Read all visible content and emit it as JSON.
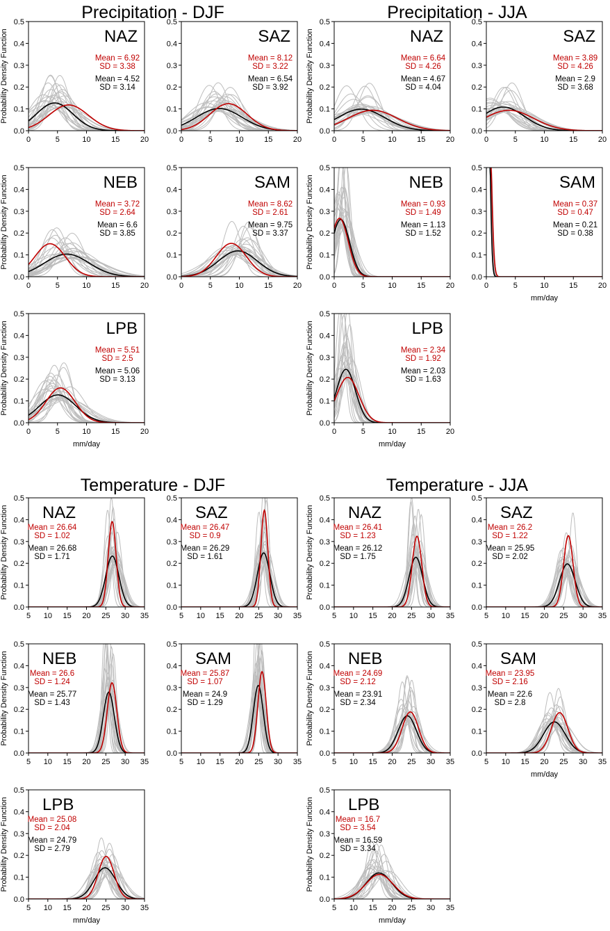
{
  "colors": {
    "obs": "#c00000",
    "ens_mean": "#000000",
    "members": "#bdbdbd"
  },
  "chart_data": {
    "type": "line",
    "ylabel": "Probability Density Function",
    "xlabel": "mm/day",
    "sections": [
      {
        "title": "Precipitation -  DJF",
        "variable": "precipitation",
        "season": "DJF",
        "xlim": [
          0,
          20
        ],
        "xticks": [
          0,
          5,
          10,
          15,
          20
        ],
        "ylim": [
          0,
          0.5
        ],
        "yticks": [
          0.0,
          0.1,
          0.2,
          0.3,
          0.4,
          0.5
        ],
        "panels": [
          {
            "region": "NAZ",
            "obs": {
              "mean_label": "Mean = 6.92",
              "sd_label": "SD = 3.38",
              "mean": 6.92,
              "sd": 3.38
            },
            "models": {
              "mean_label": "Mean = 4.52",
              "sd_label": "SD = 3.14",
              "mean": 4.52,
              "sd": 3.14
            }
          },
          {
            "region": "SAZ",
            "obs": {
              "mean_label": "Mean = 8.12",
              "sd_label": "SD = 3.22",
              "mean": 8.12,
              "sd": 3.22
            },
            "models": {
              "mean_label": "Mean = 6.54",
              "sd_label": "SD = 3.92",
              "mean": 6.54,
              "sd": 3.92
            }
          },
          {
            "region": "NEB",
            "obs": {
              "mean_label": "Mean = 3.72",
              "sd_label": "SD = 2.64",
              "mean": 3.72,
              "sd": 2.64
            },
            "models": {
              "mean_label": "Mean = 6.6",
              "sd_label": "SD = 3.85",
              "mean": 6.6,
              "sd": 3.85
            }
          },
          {
            "region": "SAM",
            "obs": {
              "mean_label": "Mean = 8.62",
              "sd_label": "SD = 2.61",
              "mean": 8.62,
              "sd": 2.61
            },
            "models": {
              "mean_label": "Mean = 9.75",
              "sd_label": "SD = 3.37",
              "mean": 9.75,
              "sd": 3.37
            }
          },
          {
            "region": "LPB",
            "obs": {
              "mean_label": "Mean = 5.51",
              "sd_label": "SD = 2.5",
              "mean": 5.51,
              "sd": 2.5
            },
            "models": {
              "mean_label": "Mean = 5.06",
              "sd_label": "SD = 3.13",
              "mean": 5.06,
              "sd": 3.13
            }
          }
        ]
      },
      {
        "title": "Precipitation -  JJA",
        "variable": "precipitation",
        "season": "JJA",
        "xlim": [
          0,
          20
        ],
        "xticks": [
          0,
          5,
          10,
          15,
          20
        ],
        "ylim": [
          0,
          0.5
        ],
        "yticks": [
          0.0,
          0.1,
          0.2,
          0.3,
          0.4,
          0.5
        ],
        "panels": [
          {
            "region": "NAZ",
            "obs": {
              "mean_label": "Mean = 6.64",
              "sd_label": "SD = 4.26",
              "mean": 6.64,
              "sd": 4.26
            },
            "models": {
              "mean_label": "Mean = 4.67",
              "sd_label": "SD = 4.04",
              "mean": 4.67,
              "sd": 4.04
            }
          },
          {
            "region": "SAZ",
            "obs": {
              "mean_label": "Mean = 3.89",
              "sd_label": "SD = 4.26",
              "mean": 3.89,
              "sd": 4.26
            },
            "models": {
              "mean_label": "Mean = 2.9",
              "sd_label": "SD = 3.68",
              "mean": 2.9,
              "sd": 3.68
            }
          },
          {
            "region": "NEB",
            "obs": {
              "mean_label": "Mean = 0.93",
              "sd_label": "SD = 1.49",
              "mean": 0.93,
              "sd": 1.49
            },
            "models": {
              "mean_label": "Mean = 1.13",
              "sd_label": "SD = 1.52",
              "mean": 1.13,
              "sd": 1.52
            }
          },
          {
            "region": "SAM",
            "obs": {
              "mean_label": "Mean = 0.37",
              "sd_label": "SD = 0.47",
              "mean": 0.37,
              "sd": 0.47
            },
            "models": {
              "mean_label": "Mean = 0.21",
              "sd_label": "SD = 0.38",
              "mean": 0.21,
              "sd": 0.38
            }
          },
          {
            "region": "LPB",
            "obs": {
              "mean_label": "Mean = 2.34",
              "sd_label": "SD = 1.92",
              "mean": 2.34,
              "sd": 1.92
            },
            "models": {
              "mean_label": "Mean = 2.03",
              "sd_label": "SD = 1.63",
              "mean": 2.03,
              "sd": 1.63
            }
          }
        ]
      },
      {
        "title": "Temperature -  DJF",
        "variable": "temperature",
        "season": "DJF",
        "xlim": [
          5,
          35
        ],
        "xticks": [
          5,
          10,
          15,
          20,
          25,
          30,
          35
        ],
        "ylim": [
          0,
          0.5
        ],
        "yticks": [
          0.0,
          0.1,
          0.2,
          0.3,
          0.4,
          0.5
        ],
        "panels": [
          {
            "region": "NAZ",
            "obs": {
              "mean_label": "Mean = 26.64",
              "sd_label": "SD = 1.02",
              "mean": 26.64,
              "sd": 1.02
            },
            "models": {
              "mean_label": "Mean = 26.68",
              "sd_label": "SD = 1.71",
              "mean": 26.68,
              "sd": 1.71
            }
          },
          {
            "region": "SAZ",
            "obs": {
              "mean_label": "Mean = 26.47",
              "sd_label": "SD = 0.9",
              "mean": 26.47,
              "sd": 0.9
            },
            "models": {
              "mean_label": "Mean = 26.29",
              "sd_label": "SD = 1.61",
              "mean": 26.29,
              "sd": 1.61
            }
          },
          {
            "region": "NEB",
            "obs": {
              "mean_label": "Mean = 26.6",
              "sd_label": "SD = 1.24",
              "mean": 26.6,
              "sd": 1.24
            },
            "models": {
              "mean_label": "Mean = 25.77",
              "sd_label": "SD = 1.43",
              "mean": 25.77,
              "sd": 1.43
            }
          },
          {
            "region": "SAM",
            "obs": {
              "mean_label": "Mean = 25.87",
              "sd_label": "SD = 1.07",
              "mean": 25.87,
              "sd": 1.07
            },
            "models": {
              "mean_label": "Mean = 24.9",
              "sd_label": "SD = 1.29",
              "mean": 24.9,
              "sd": 1.29
            }
          },
          {
            "region": "LPB",
            "obs": {
              "mean_label": "Mean = 25.08",
              "sd_label": "SD = 2.04",
              "mean": 25.08,
              "sd": 2.04
            },
            "models": {
              "mean_label": "Mean = 24.79",
              "sd_label": "SD = 2.79",
              "mean": 24.79,
              "sd": 2.79
            }
          }
        ]
      },
      {
        "title": "Temperature -  JJA",
        "variable": "temperature",
        "season": "JJA",
        "xlim": [
          5,
          35
        ],
        "xticks": [
          5,
          10,
          15,
          20,
          25,
          30,
          35
        ],
        "ylim": [
          0,
          0.5
        ],
        "yticks": [
          0.0,
          0.1,
          0.2,
          0.3,
          0.4,
          0.5
        ],
        "panels": [
          {
            "region": "NAZ",
            "obs": {
              "mean_label": "Mean = 26.41",
              "sd_label": "SD = 1.23",
              "mean": 26.41,
              "sd": 1.23
            },
            "models": {
              "mean_label": "Mean = 26.12",
              "sd_label": "SD = 1.75",
              "mean": 26.12,
              "sd": 1.75
            }
          },
          {
            "region": "SAZ",
            "obs": {
              "mean_label": "Mean = 26.2",
              "sd_label": "SD = 1.22",
              "mean": 26.2,
              "sd": 1.22
            },
            "models": {
              "mean_label": "Mean = 25.95",
              "sd_label": "SD = 2.02",
              "mean": 25.95,
              "sd": 2.02
            }
          },
          {
            "region": "NEB",
            "obs": {
              "mean_label": "Mean = 24.69",
              "sd_label": "SD = 2.12",
              "mean": 24.69,
              "sd": 2.12
            },
            "models": {
              "mean_label": "Mean = 23.91",
              "sd_label": "SD = 2.34",
              "mean": 23.91,
              "sd": 2.34
            }
          },
          {
            "region": "SAM",
            "obs": {
              "mean_label": "Mean = 23.95",
              "sd_label": "SD = 2.16",
              "mean": 23.95,
              "sd": 2.16
            },
            "models": {
              "mean_label": "Mean = 22.6",
              "sd_label": "SD = 2.8",
              "mean": 22.6,
              "sd": 2.8
            }
          },
          {
            "region": "LPB",
            "obs": {
              "mean_label": "Mean = 16.7",
              "sd_label": "SD = 3.54",
              "mean": 16.7,
              "sd": 3.54
            },
            "models": {
              "mean_label": "Mean = 16.59",
              "sd_label": "SD = 3.34",
              "mean": 16.59,
              "sd": 3.34
            }
          }
        ]
      }
    ]
  }
}
